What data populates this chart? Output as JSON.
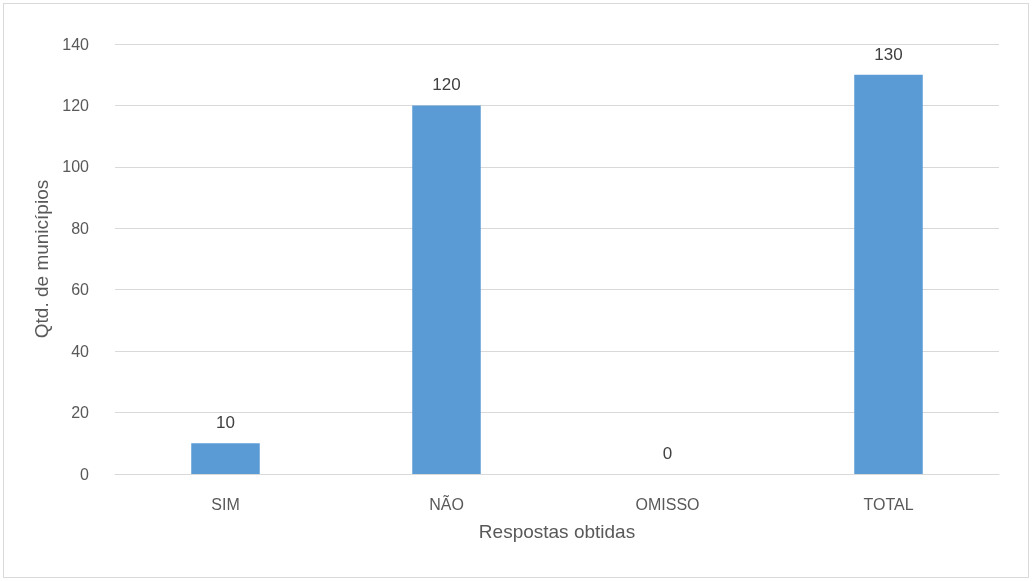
{
  "chart_data": {
    "type": "bar",
    "xlabel": "Respostas obtidas",
    "ylabel": "Qtd. de municípios",
    "categories": [
      "SIM",
      "NÃO",
      "OMISSO",
      "TOTAL"
    ],
    "values": [
      10,
      120,
      0,
      130
    ],
    "color": "#5b9bd5",
    "ylim": [
      0,
      140
    ],
    "yticks": [
      0,
      20,
      40,
      60,
      80,
      100,
      120,
      140
    ],
    "grid": "y",
    "data_labels": true
  }
}
